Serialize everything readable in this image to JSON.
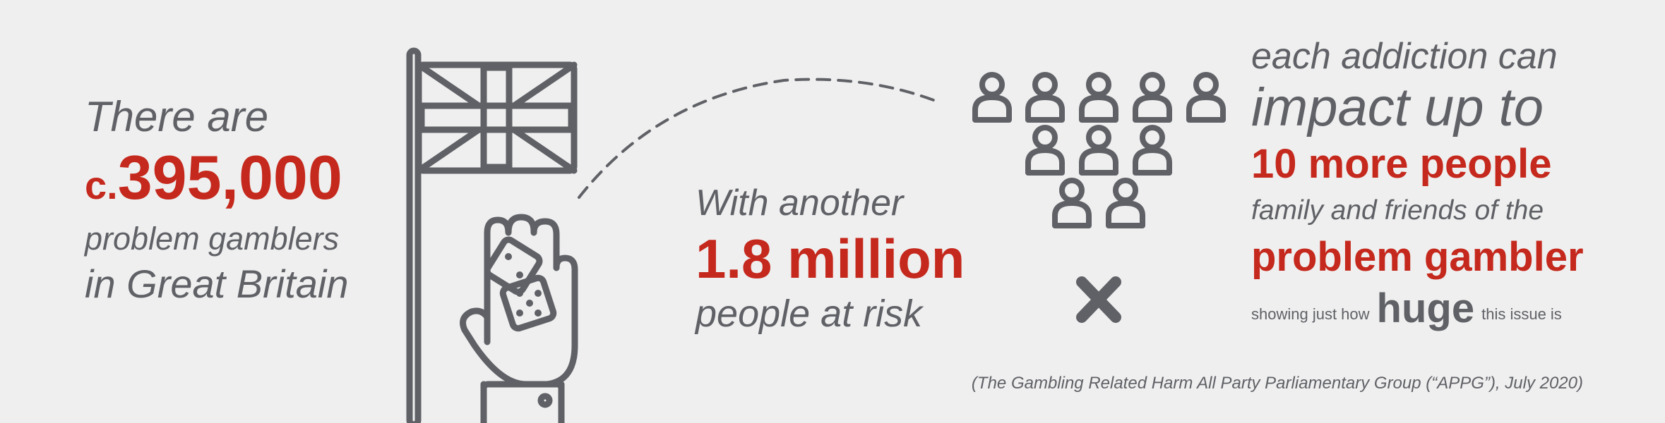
{
  "left": {
    "line1": "There are",
    "prefix": "c.",
    "figure": "395,000",
    "line3": "problem gamblers",
    "line4": "in Great Britain"
  },
  "center": {
    "line1": "With another",
    "figure": "1.8 million",
    "line3": "people at risk"
  },
  "right": {
    "line1": "each addiction can",
    "line2": "impact up to",
    "line3": "10 more people",
    "line4": "family and friends of the",
    "line5": "problem gambler",
    "line6_pre": "showing just how",
    "line6_huge": "huge",
    "line6_post": "this issue is"
  },
  "source": "(The Gambling Related Harm All Party Parliamentary Group (“APPG”), July 2020)",
  "icons": [
    "union-flag-icon",
    "hand-dice-icon",
    "person-icon",
    "cross-icon"
  ],
  "colors": {
    "accent": "#c5281c",
    "text": "#5f6166",
    "background": "#efefef"
  }
}
